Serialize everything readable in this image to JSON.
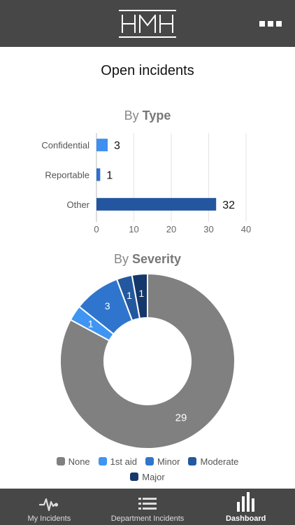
{
  "header": {
    "logo_text": "HMH"
  },
  "page_title": "Open incidents",
  "by_type": {
    "title_prefix": "By",
    "title_bold": "Type"
  },
  "by_severity": {
    "title_prefix": "By",
    "title_bold": "Severity"
  },
  "chart_data": [
    {
      "type": "bar",
      "orientation": "horizontal",
      "categories": [
        "Confidential",
        "Reportable",
        "Other"
      ],
      "values": [
        3,
        1,
        32
      ],
      "colors": [
        "#3f8ff0",
        "#2e6fcf",
        "#2456a0"
      ],
      "xlim": [
        0,
        40
      ],
      "xticks": [
        0,
        10,
        20,
        30,
        40
      ],
      "grid": true
    },
    {
      "type": "pie",
      "style": "donut",
      "labels": [
        "None",
        "1st aid",
        "Minor",
        "Moderate",
        "Major"
      ],
      "values": [
        29,
        1,
        3,
        1,
        1
      ],
      "colors": [
        "#808080",
        "#3f95f2",
        "#2f75cd",
        "#23589f",
        "#15386b"
      ],
      "legend": "bottom"
    }
  ],
  "tabs": [
    {
      "label": "My Incidents",
      "icon": "heartbeat-icon"
    },
    {
      "label": "Department Incidents",
      "icon": "list-icon"
    },
    {
      "label": "Dashboard",
      "icon": "bar-chart-icon",
      "active": true
    }
  ]
}
